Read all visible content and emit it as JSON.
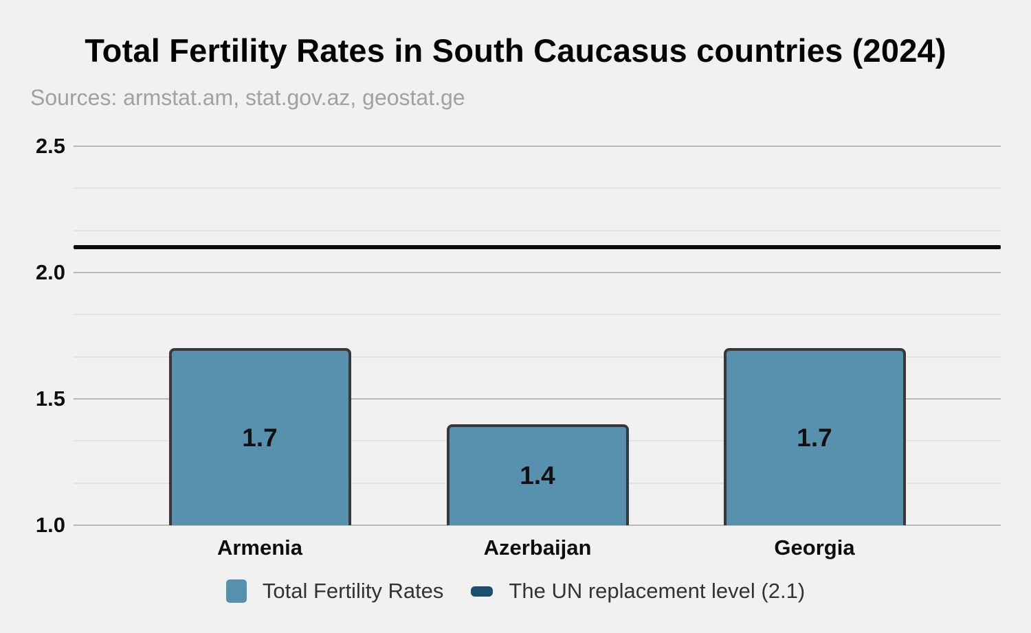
{
  "chart_data": {
    "type": "bar",
    "title": "Total Fertility Rates in South Caucasus countries (2024)",
    "subtitle": "Sources: armstat.am, stat.gov.az, geostat.ge",
    "categories": [
      "Armenia",
      "Azerbaijan",
      "Georgia"
    ],
    "values": [
      1.7,
      1.4,
      1.7
    ],
    "bar_value_labels": [
      "1.7",
      "1.4",
      "1.7"
    ],
    "xlabel": "",
    "ylabel": "",
    "ylim": [
      1.0,
      2.5
    ],
    "yticks": [
      1.0,
      1.5,
      2.0,
      2.5
    ],
    "ytick_labels": [
      "1.0",
      "1.5",
      "2.0",
      "2.5"
    ],
    "minor_gridlines_per_interval": 2,
    "grid": true,
    "reference_line": {
      "value": 2.1,
      "label": "The UN replacement level (2.1)",
      "color": "#0a0d10"
    },
    "legend": {
      "position": "bottom",
      "entries": [
        {
          "label": "Total Fertility Rates",
          "type": "bar",
          "color": "#5891ad"
        },
        {
          "label": "The UN replacement level (2.1)",
          "type": "line",
          "color": "#1a4f6d"
        }
      ]
    },
    "colors": {
      "background": "#f1f1f1",
      "bar_fill": "#5891ad",
      "bar_border": "#383838",
      "major_grid": "#b8b8b8",
      "minor_grid": "#e3e3e3",
      "title_text": "#000000",
      "subtitle_text": "#a1a1a1",
      "axis_text": "#0d0d0d",
      "legend_text": "#333333"
    }
  }
}
